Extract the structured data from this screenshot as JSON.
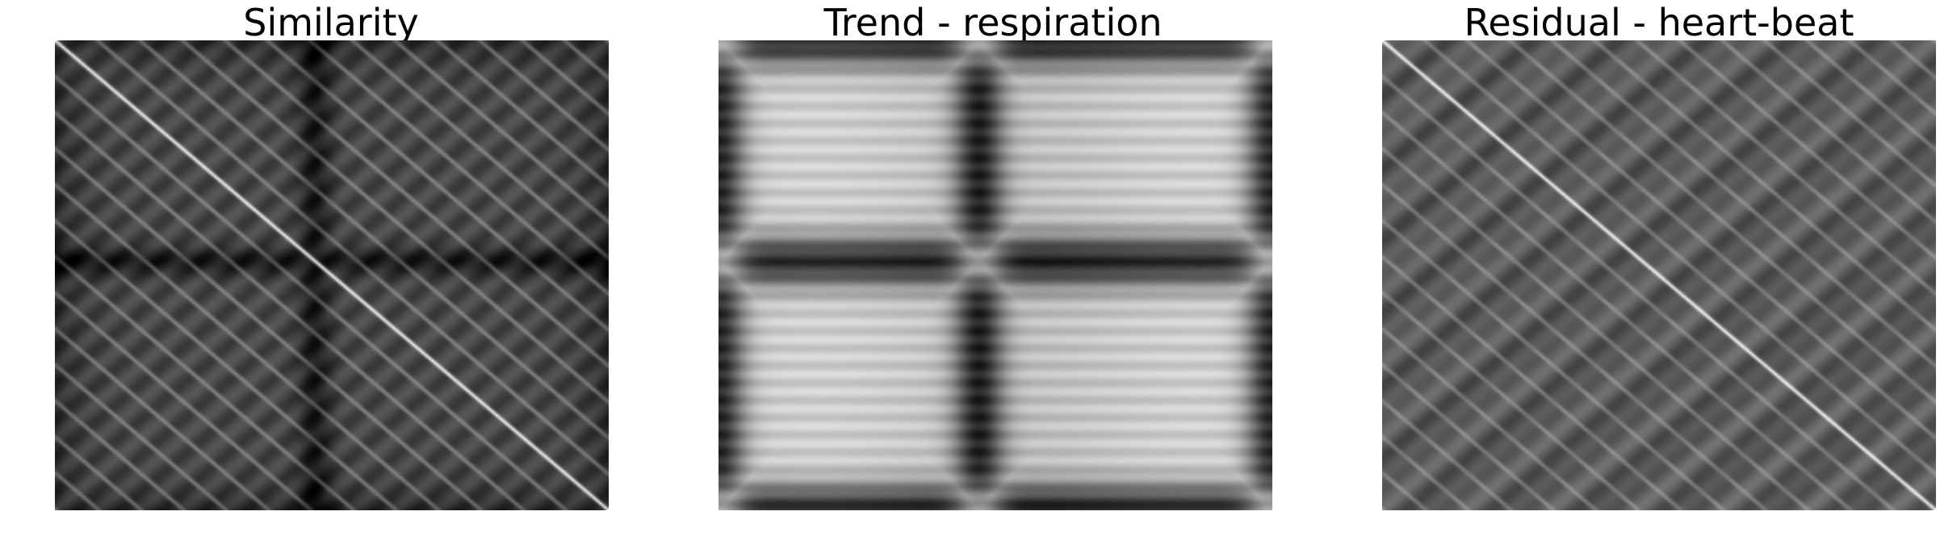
{
  "chart_data": [
    {
      "type": "heatmap",
      "title": "Similarity",
      "colormap": "gray",
      "axes_visible": false,
      "pattern": {
        "diagonal": "bright",
        "diagonal_period_fraction": 0.077,
        "block_boundaries_fraction": [
          0.47
        ],
        "block_boundary_tone": "dark"
      }
    },
    {
      "type": "heatmap",
      "title": "Trend - respiration",
      "colormap": "gray",
      "axes_visible": false,
      "pattern": {
        "diagonal": "none",
        "block_boundaries_fraction": [
          0.0,
          0.47,
          1.0
        ],
        "block_boundary_tone": "dark",
        "block_interior_tone": "light"
      }
    },
    {
      "type": "heatmap",
      "title": "Residual - heart-beat",
      "colormap": "gray",
      "axes_visible": false,
      "pattern": {
        "diagonal": "bright",
        "diagonal_period_fraction": 0.077,
        "block_boundaries_fraction": [],
        "block_boundary_tone": "none"
      }
    }
  ]
}
